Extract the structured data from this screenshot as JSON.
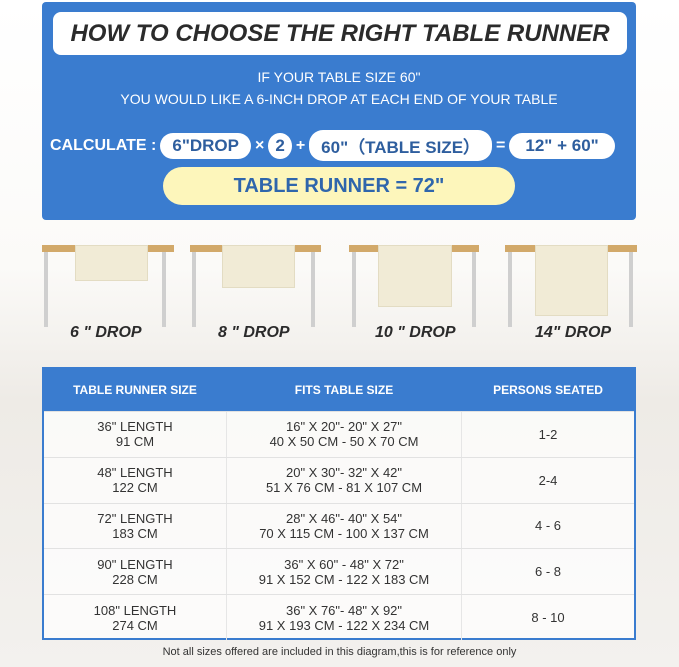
{
  "title": "HOW TO CHOOSE THE RIGHT TABLE RUNNER",
  "intro": [
    "IF YOUR TABLE SIZE 60\"",
    "YOU WOULD LIKE A 6-INCH DROP AT EACH END OF YOUR TABLE"
  ],
  "calc": {
    "label": "CALCULATE :",
    "drop": "6\"DROP",
    "times": "×",
    "two": "2",
    "plus": "+",
    "table": "60\"（TABLE SIZE）",
    "equals": "=",
    "sum": "12\" + 60\"",
    "result": "TABLE RUNNER = 72\""
  },
  "drops": [
    "6 \" DROP",
    "8 \" DROP",
    "10 \" DROP",
    "14\" DROP"
  ],
  "table": {
    "headers": [
      "TABLE RUNNER SIZE",
      "FITS TABLE SIZE",
      "PERSONS SEATED"
    ],
    "rows": [
      {
        "size": [
          "36\" LENGTH",
          "91 CM"
        ],
        "fits": [
          "16\" X 20\"- 20\" X 27\"",
          "40 X 50 CM - 50 X 70 CM"
        ],
        "persons": "1-2"
      },
      {
        "size": [
          "48\" LENGTH",
          "122 CM"
        ],
        "fits": [
          "20\" X 30\"- 32\" X 42\"",
          "51 X 76 CM - 81 X 107 CM"
        ],
        "persons": "2-4"
      },
      {
        "size": [
          "72\" LENGTH",
          "183 CM"
        ],
        "fits": [
          "28\" X 46\"- 40\" X 54\"",
          "70 X 115 CM - 100 X 137 CM"
        ],
        "persons": "4 - 6"
      },
      {
        "size": [
          "90\" LENGTH",
          "228 CM"
        ],
        "fits": [
          "36\" X 60\" - 48\" X 72\"",
          "91 X 152 CM - 122 X 183 CM"
        ],
        "persons": "6 - 8"
      },
      {
        "size": [
          "108\" LENGTH",
          "274 CM"
        ],
        "fits": [
          "36\" X 76\"- 48\" X 92\"",
          "91 X 193 CM - 122 X 234 CM"
        ],
        "persons": "8 - 10"
      }
    ]
  },
  "footnote": "Not all sizes offered are included in this diagram,this is for reference only",
  "colors": {
    "blue": "#3a7ccf",
    "yellow": "#fdf6bb",
    "wood": "#d2a96a"
  }
}
